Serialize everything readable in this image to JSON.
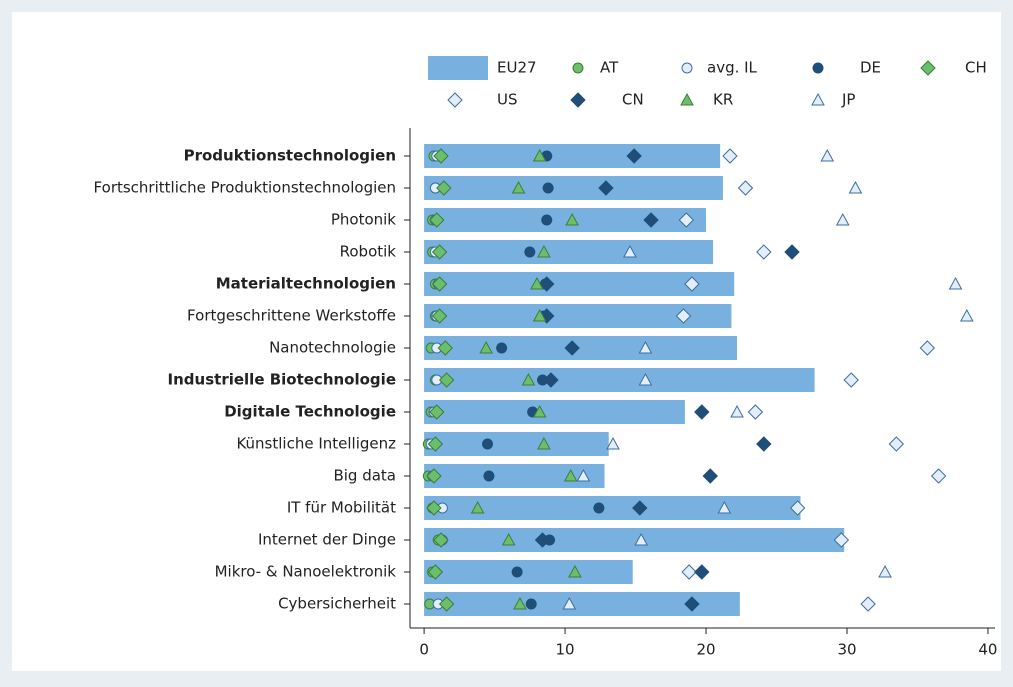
{
  "chart_data": {
    "type": "bar",
    "orientation": "horizontal",
    "categories": [
      "Produktionstechnologien",
      "Fortschrittliche Produktionstechnologien",
      "Photonik",
      "Robotik",
      "Materialtechnologien",
      "Fortgeschrittene Werkstoffe",
      "Nanotechnologie",
      "Industrielle Biotechnologie",
      "Digitale Technologie",
      "Künstliche Intelligenz",
      "Big data",
      "IT für Mobilität",
      "Internet der Dinge",
      "Mikro- & Nanoelektronik",
      "Cybersicherheit"
    ],
    "bold": [
      true,
      false,
      false,
      false,
      true,
      false,
      false,
      true,
      true,
      false,
      false,
      false,
      false,
      false,
      false
    ],
    "series": [
      {
        "name": "EU27",
        "marker": "bar",
        "color": "#78b1df",
        "stroke": "none",
        "values": [
          21.0,
          21.2,
          20.0,
          20.5,
          22.0,
          21.8,
          22.2,
          27.7,
          18.5,
          13.1,
          12.8,
          26.7,
          29.8,
          14.8,
          22.4
        ]
      },
      {
        "name": "AT",
        "marker": "circle",
        "color": "#6cbf6a",
        "stroke": "#3c7d3c",
        "values": [
          0.7,
          0.8,
          0.6,
          0.6,
          0.8,
          0.8,
          0.5,
          0.8,
          0.5,
          0.3,
          0.3,
          0.6,
          1.0,
          0.6,
          0.4
        ]
      },
      {
        "name": "avg. IL",
        "marker": "circle",
        "color": "#e4eefa",
        "stroke": "#3d6e9e",
        "values": [
          0.9,
          0.8,
          0.8,
          0.8,
          1.0,
          0.9,
          0.9,
          0.9,
          0.7,
          0.5,
          0.6,
          1.3,
          1.3,
          0.8,
          1.0
        ]
      },
      {
        "name": "DE",
        "marker": "circle",
        "color": "#1f4e79",
        "stroke": "#1f4e79",
        "values": [
          8.7,
          8.8,
          8.7,
          7.5,
          8.6,
          8.5,
          5.5,
          8.4,
          7.7,
          4.5,
          4.6,
          12.4,
          8.9,
          6.6,
          7.6
        ]
      },
      {
        "name": "CH",
        "marker": "diamond",
        "color": "#6cbf6a",
        "stroke": "#3c7d3c",
        "values": [
          1.2,
          1.4,
          0.9,
          1.1,
          1.1,
          1.1,
          1.5,
          1.6,
          0.9,
          0.8,
          0.7,
          0.7,
          1.2,
          0.8,
          1.6
        ]
      },
      {
        "name": "US",
        "marker": "diamond",
        "color": "#e4eefa",
        "stroke": "#3d6e9e",
        "values": [
          21.7,
          22.8,
          18.6,
          24.1,
          19.0,
          18.4,
          35.7,
          30.3,
          23.5,
          33.5,
          36.5,
          26.5,
          29.6,
          18.8,
          31.5
        ]
      },
      {
        "name": "CN",
        "marker": "diamond",
        "color": "#1f4e79",
        "stroke": "#1f4e79",
        "values": [
          14.9,
          12.9,
          16.1,
          26.1,
          8.7,
          8.7,
          10.5,
          9.0,
          19.7,
          24.1,
          20.3,
          15.3,
          8.4,
          19.7,
          19.0
        ]
      },
      {
        "name": "KR",
        "marker": "triangle",
        "color": "#6cbf6a",
        "stroke": "#3c7d3c",
        "values": [
          8.2,
          6.7,
          10.5,
          8.5,
          8.0,
          8.2,
          4.4,
          7.4,
          8.2,
          8.5,
          10.4,
          3.8,
          6.0,
          10.7,
          6.8
        ]
      },
      {
        "name": "JP",
        "marker": "triangle",
        "color": "#e4eefa",
        "stroke": "#3d6e9e",
        "values": [
          28.6,
          30.6,
          29.7,
          14.6,
          37.7,
          38.5,
          15.7,
          15.7,
          22.2,
          13.4,
          11.3,
          21.3,
          15.4,
          32.7,
          10.3
        ]
      }
    ],
    "xlim": [
      -1,
      40.5
    ],
    "xticks": [
      0,
      10,
      20,
      30,
      40
    ]
  }
}
